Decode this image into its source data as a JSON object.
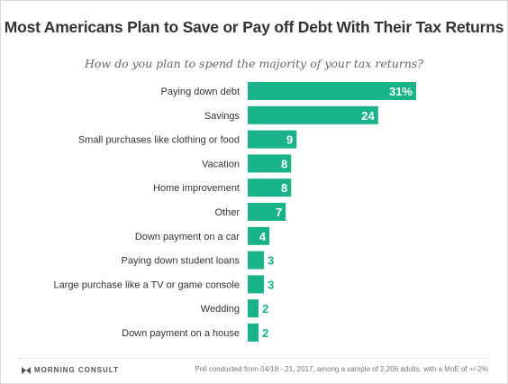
{
  "chart_data": {
    "type": "bar",
    "orientation": "horizontal",
    "title": "Most Americans Plan to Save or Pay off Debt With Their Tax Returns",
    "subtitle": "How do you plan to spend the majority of your tax returns?",
    "categories": [
      "Paying down debt",
      "Savings",
      "Small purchases like clothing or food",
      "Vacation",
      "Home improvement",
      "Other",
      "Down payment on a car",
      "Paying down student loans",
      "Large purchase like a TV or game console",
      "Wedding",
      "Down payment on a house"
    ],
    "values": [
      31,
      24,
      9,
      8,
      8,
      7,
      4,
      3,
      3,
      2,
      2
    ],
    "value_labels": [
      "31%",
      "24",
      "9",
      "8",
      "8",
      "7",
      "4",
      "3",
      "3",
      "2",
      "2"
    ],
    "unit": "%",
    "xlim": [
      0,
      31
    ],
    "grid": false,
    "bar_color": "#19b38a"
  },
  "footer": {
    "brand": "MORNING CONSULT",
    "source": "Poll conducted from 04/18 - 21, 2017, among a sample of 2,206 adults, with a MoE of +/-2%"
  },
  "colors": {
    "bar": "#19b38a",
    "label_inside": "#ffffff",
    "label_outside": "#19b38a"
  }
}
